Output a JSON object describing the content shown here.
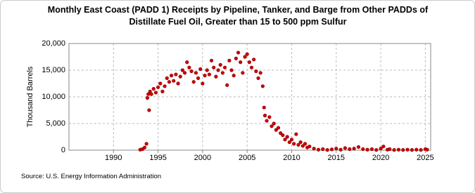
{
  "chart_data": {
    "type": "scatter",
    "title": "Monthly East Coast (PADD 1) Receipts by Pipeline, Tanker, and Barge from Other PADDs of",
    "subtitle": "Distillate Fuel Oil, Greater than 15 to 500 ppm Sulfur",
    "y_label": "Thousand Barrels",
    "source": "Source: U.S. Energy Information Administration",
    "color": "#cc0000",
    "grid": true,
    "xlim": [
      1985,
      2025.6
    ],
    "xticks": [
      1990,
      1995,
      2000,
      2005,
      2010,
      2015,
      2020,
      2025
    ],
    "ylim": [
      0,
      20000
    ],
    "yticks": [
      0,
      {
        "value": 5000,
        "label": "5,000"
      },
      {
        "value": 10000,
        "label": "10,000"
      },
      {
        "value": 15000,
        "label": "15,000"
      },
      {
        "value": 20000,
        "label": "20,000"
      }
    ],
    "x": [
      1993.0,
      1993.25,
      1993.5,
      1993.7,
      1993.8,
      1993.9,
      1994.0,
      1994.1,
      1994.25,
      1994.5,
      1994.75,
      1995.0,
      1995.25,
      1995.5,
      1995.75,
      1996.0,
      1996.25,
      1996.5,
      1996.75,
      1997.0,
      1997.25,
      1997.5,
      1997.75,
      1998.0,
      1998.25,
      1998.5,
      1998.75,
      1999.0,
      1999.25,
      1999.5,
      1999.75,
      2000.0,
      2000.25,
      2000.5,
      2000.75,
      2001.0,
      2001.25,
      2001.5,
      2001.75,
      2002.0,
      2002.25,
      2002.5,
      2002.75,
      2003.0,
      2003.25,
      2003.5,
      2003.75,
      2004.0,
      2004.25,
      2004.5,
      2004.75,
      2005.0,
      2005.25,
      2005.5,
      2005.75,
      2006.0,
      2006.25,
      2006.5,
      2006.75,
      2006.9,
      2007.0,
      2007.2,
      2007.5,
      2007.75,
      2008.0,
      2008.25,
      2008.5,
      2008.75,
      2009.0,
      2009.25,
      2009.5,
      2009.75,
      2010.0,
      2010.25,
      2010.5,
      2010.75,
      2011.0,
      2011.25,
      2011.5,
      2011.75,
      2012.0,
      2012.5,
      2013.0,
      2013.5,
      2014.0,
      2014.5,
      2015.0,
      2015.5,
      2016.0,
      2016.5,
      2017.0,
      2017.5,
      2018.0,
      2018.5,
      2019.0,
      2019.5,
      2020.0,
      2020.3,
      2020.75,
      2021.0,
      2021.5,
      2022.0,
      2022.5,
      2023.0,
      2023.5,
      2024.0,
      2024.5,
      2025.0,
      2025.2
    ],
    "values": [
      100,
      200,
      500,
      1200,
      9800,
      10500,
      7500,
      11000,
      10500,
      11500,
      10800,
      11800,
      12500,
      11000,
      12000,
      13500,
      12800,
      14000,
      13000,
      14200,
      12500,
      13800,
      15000,
      14500,
      16500,
      15500,
      14800,
      12800,
      14500,
      13500,
      15200,
      12500,
      14000,
      15000,
      14200,
      16800,
      15500,
      13800,
      15000,
      16000,
      14500,
      15500,
      12200,
      16800,
      15000,
      14000,
      17200,
      18300,
      16500,
      14500,
      17500,
      18000,
      16500,
      15500,
      17000,
      14800,
      13500,
      14500,
      12000,
      8000,
      6500,
      5500,
      6200,
      4500,
      5000,
      3800,
      4200,
      3200,
      2800,
      2000,
      2500,
      1500,
      2000,
      1200,
      3000,
      1000,
      1500,
      800,
      1200,
      500,
      700,
      300,
      100,
      200,
      50,
      150,
      300,
      100,
      400,
      200,
      300,
      600,
      200,
      100,
      200,
      50,
      300,
      700,
      100,
      200,
      50,
      100,
      50,
      100,
      50,
      100,
      50,
      200,
      100
    ]
  }
}
